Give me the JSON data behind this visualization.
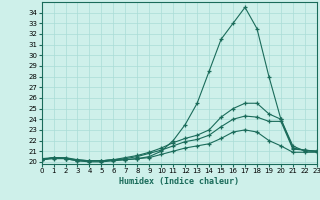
{
  "xlabel": "Humidex (Indice chaleur)",
  "bg_color": "#cef0ea",
  "line_color": "#1a6b5a",
  "grid_color": "#aaddd6",
  "x_values": [
    0,
    1,
    2,
    3,
    4,
    5,
    6,
    7,
    8,
    9,
    10,
    11,
    12,
    13,
    14,
    15,
    16,
    17,
    18,
    19,
    20,
    21,
    22,
    23
  ],
  "series": [
    [
      20.3,
      20.4,
      20.4,
      20.2,
      20.1,
      20.1,
      20.2,
      20.2,
      20.3,
      20.5,
      21.0,
      22.0,
      23.5,
      25.5,
      28.5,
      31.5,
      33.0,
      34.5,
      32.5,
      28.0,
      24.0,
      21.5,
      21.0,
      21.0
    ],
    [
      20.2,
      20.4,
      20.3,
      20.2,
      20.1,
      20.1,
      20.2,
      20.4,
      20.6,
      20.9,
      21.3,
      21.8,
      22.2,
      22.5,
      23.0,
      24.2,
      25.0,
      25.5,
      25.5,
      24.5,
      24.0,
      21.3,
      21.1,
      21.0
    ],
    [
      20.2,
      20.4,
      20.3,
      20.1,
      20.1,
      20.1,
      20.2,
      20.3,
      20.5,
      20.8,
      21.1,
      21.5,
      21.9,
      22.1,
      22.5,
      23.3,
      24.0,
      24.3,
      24.2,
      23.8,
      23.8,
      21.2,
      21.1,
      21.0
    ],
    [
      20.2,
      20.3,
      20.3,
      20.1,
      20.0,
      20.0,
      20.1,
      20.2,
      20.3,
      20.4,
      20.7,
      21.0,
      21.3,
      21.5,
      21.7,
      22.2,
      22.8,
      23.0,
      22.8,
      22.0,
      21.5,
      20.9,
      20.9,
      20.9
    ]
  ],
  "xlim": [
    0,
    23
  ],
  "ylim": [
    19.8,
    35.0
  ],
  "yticks": [
    20,
    21,
    22,
    23,
    24,
    25,
    26,
    27,
    28,
    29,
    30,
    31,
    32,
    33,
    34
  ],
  "xticks": [
    0,
    1,
    2,
    3,
    4,
    5,
    6,
    7,
    8,
    9,
    10,
    11,
    12,
    13,
    14,
    15,
    16,
    17,
    18,
    19,
    20,
    21,
    22,
    23
  ],
  "xlabel_fontsize": 6,
  "tick_fontsize": 5
}
